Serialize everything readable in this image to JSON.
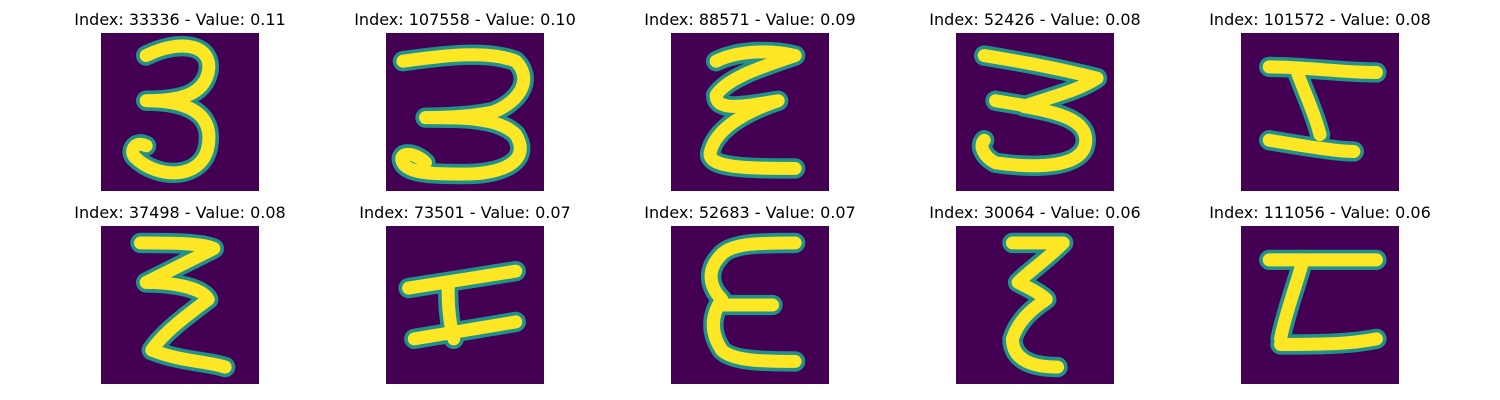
{
  "colors": {
    "background": "#440154",
    "edge": "#21918c",
    "stroke": "#fde725"
  },
  "panels": [
    {
      "title": "Index: 33336 - Value: 0.11",
      "glyph": "3"
    },
    {
      "title": "Index: 107558 - Value: 0.10",
      "glyph": "3"
    },
    {
      "title": "Index: 88571 - Value: 0.09",
      "glyph": "ε"
    },
    {
      "title": "Index: 52426 - Value: 0.08",
      "glyph": "3"
    },
    {
      "title": "Index: 101572 - Value: 0.08",
      "glyph": "I"
    },
    {
      "title": "Index: 37498 - Value: 0.08",
      "glyph": "Ƨ"
    },
    {
      "title": "Index: 73501 - Value: 0.07",
      "glyph": "H"
    },
    {
      "title": "Index: 52683 - Value: 0.07",
      "glyph": "E"
    },
    {
      "title": "Index: 30064 - Value: 0.06",
      "glyph": "ξ"
    },
    {
      "title": "Index: 111056 - Value: 0.06",
      "glyph": "I"
    }
  ]
}
